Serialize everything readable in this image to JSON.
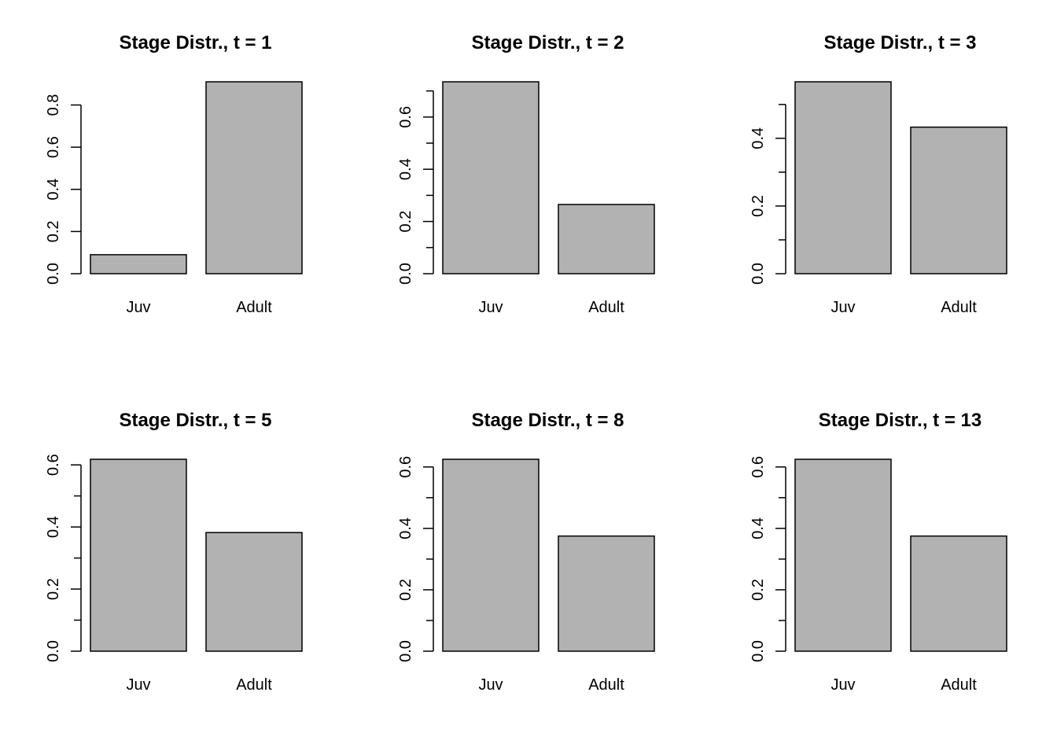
{
  "colors": {
    "bar_fill": "#b2b2b2",
    "bar_stroke": "#000000",
    "background": "#ffffff"
  },
  "chart_data": [
    {
      "type": "bar",
      "title": "Stage Distr., t = 1",
      "categories": [
        "Juv",
        "Adult"
      ],
      "values": [
        0.09,
        0.91
      ],
      "ylim": [
        0,
        0.91
      ],
      "y_ticks": [
        0.0,
        0.2,
        0.4,
        0.6,
        0.8
      ],
      "y_tick_labels": [
        "0.0",
        "0.2",
        "0.4",
        "0.6",
        "0.8"
      ],
      "y_minor_ticks": [],
      "xlabel": "",
      "ylabel": "",
      "grid": false
    },
    {
      "type": "bar",
      "title": "Stage Distr., t = 2",
      "categories": [
        "Juv",
        "Adult"
      ],
      "values": [
        0.735,
        0.265
      ],
      "ylim": [
        0,
        0.735
      ],
      "y_ticks": [
        0.0,
        0.2,
        0.4,
        0.6
      ],
      "y_tick_labels": [
        "0.0",
        "0.2",
        "0.4",
        "0.6"
      ],
      "y_minor_ticks": [
        0.1,
        0.3,
        0.5,
        0.7
      ],
      "xlabel": "",
      "ylabel": "",
      "grid": false
    },
    {
      "type": "bar",
      "title": "Stage Distr., t = 3",
      "categories": [
        "Juv",
        "Adult"
      ],
      "values": [
        0.567,
        0.433
      ],
      "ylim": [
        0,
        0.567
      ],
      "y_ticks": [
        0.0,
        0.2,
        0.4
      ],
      "y_tick_labels": [
        "0.0",
        "0.2",
        "0.4"
      ],
      "y_minor_ticks": [
        0.1,
        0.3,
        0.5
      ],
      "xlabel": "",
      "ylabel": "",
      "grid": false
    },
    {
      "type": "bar",
      "title": "Stage Distr., t = 5",
      "categories": [
        "Juv",
        "Adult"
      ],
      "values": [
        0.618,
        0.382
      ],
      "ylim": [
        0,
        0.618
      ],
      "y_ticks": [
        0.0,
        0.2,
        0.4,
        0.6
      ],
      "y_tick_labels": [
        "0.0",
        "0.2",
        "0.4",
        "0.6"
      ],
      "y_minor_ticks": [
        0.1,
        0.3,
        0.5
      ],
      "xlabel": "",
      "ylabel": "",
      "grid": false
    },
    {
      "type": "bar",
      "title": "Stage Distr., t = 8",
      "categories": [
        "Juv",
        "Adult"
      ],
      "values": [
        0.625,
        0.375
      ],
      "ylim": [
        0,
        0.625
      ],
      "y_ticks": [
        0.0,
        0.2,
        0.4,
        0.6
      ],
      "y_tick_labels": [
        "0.0",
        "0.2",
        "0.4",
        "0.6"
      ],
      "y_minor_ticks": [
        0.1,
        0.3,
        0.5
      ],
      "xlabel": "",
      "ylabel": "",
      "grid": false
    },
    {
      "type": "bar",
      "title": "Stage Distr., t = 13",
      "categories": [
        "Juv",
        "Adult"
      ],
      "values": [
        0.625,
        0.375
      ],
      "ylim": [
        0,
        0.625
      ],
      "y_ticks": [
        0.0,
        0.2,
        0.4,
        0.6
      ],
      "y_tick_labels": [
        "0.0",
        "0.2",
        "0.4",
        "0.6"
      ],
      "y_minor_ticks": [
        0.1,
        0.3,
        0.5
      ],
      "xlabel": "",
      "ylabel": "",
      "grid": false
    }
  ]
}
